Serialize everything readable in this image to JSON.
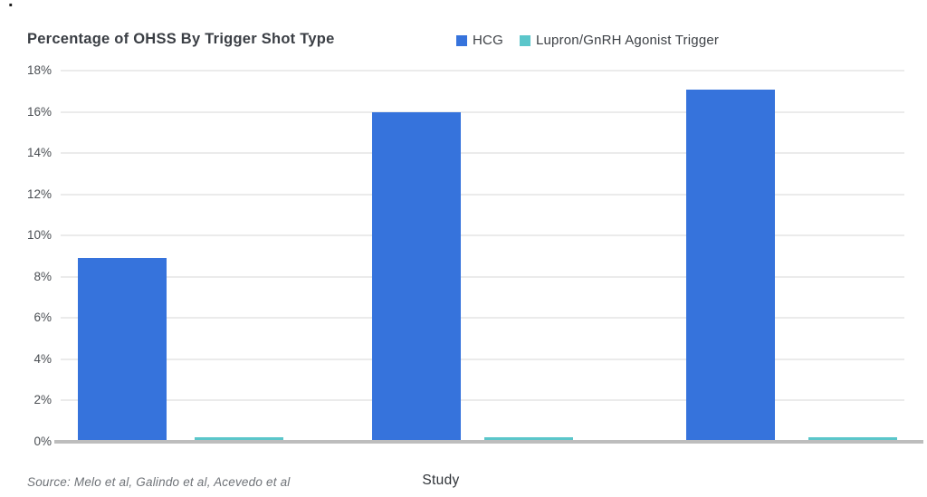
{
  "page": {
    "stray_mark": "."
  },
  "chart_data": {
    "type": "bar",
    "title": "Percentage of OHSS By Trigger Shot Type",
    "xlabel": "Study",
    "ylabel": "",
    "source": "Source: Melo et al, Galindo et al, Acevedo et al",
    "categories": [
      "",
      "",
      ""
    ],
    "series": [
      {
        "name": "HCG",
        "color": "#3673DC",
        "values": [
          8.9,
          16,
          17.1
        ]
      },
      {
        "name": "Lupron/GnRH Agonist Trigger",
        "color": "#5BC6CA",
        "values": [
          0.2,
          0.2,
          0.2
        ]
      }
    ],
    "ylim": [
      0,
      18
    ],
    "ytick_step": 2,
    "ytick_labels": [
      "0%",
      "2%",
      "4%",
      "6%",
      "8%",
      "10%",
      "12%",
      "14%",
      "16%",
      "18%"
    ],
    "grid": true,
    "legend_position": "top-right",
    "colors": {
      "gridline": "#EBEBEB",
      "axis_line": "#BDBDBD",
      "title_text": "#3A3E44",
      "tick_text": "#4A4E53",
      "source_text": "#6F7378"
    }
  }
}
